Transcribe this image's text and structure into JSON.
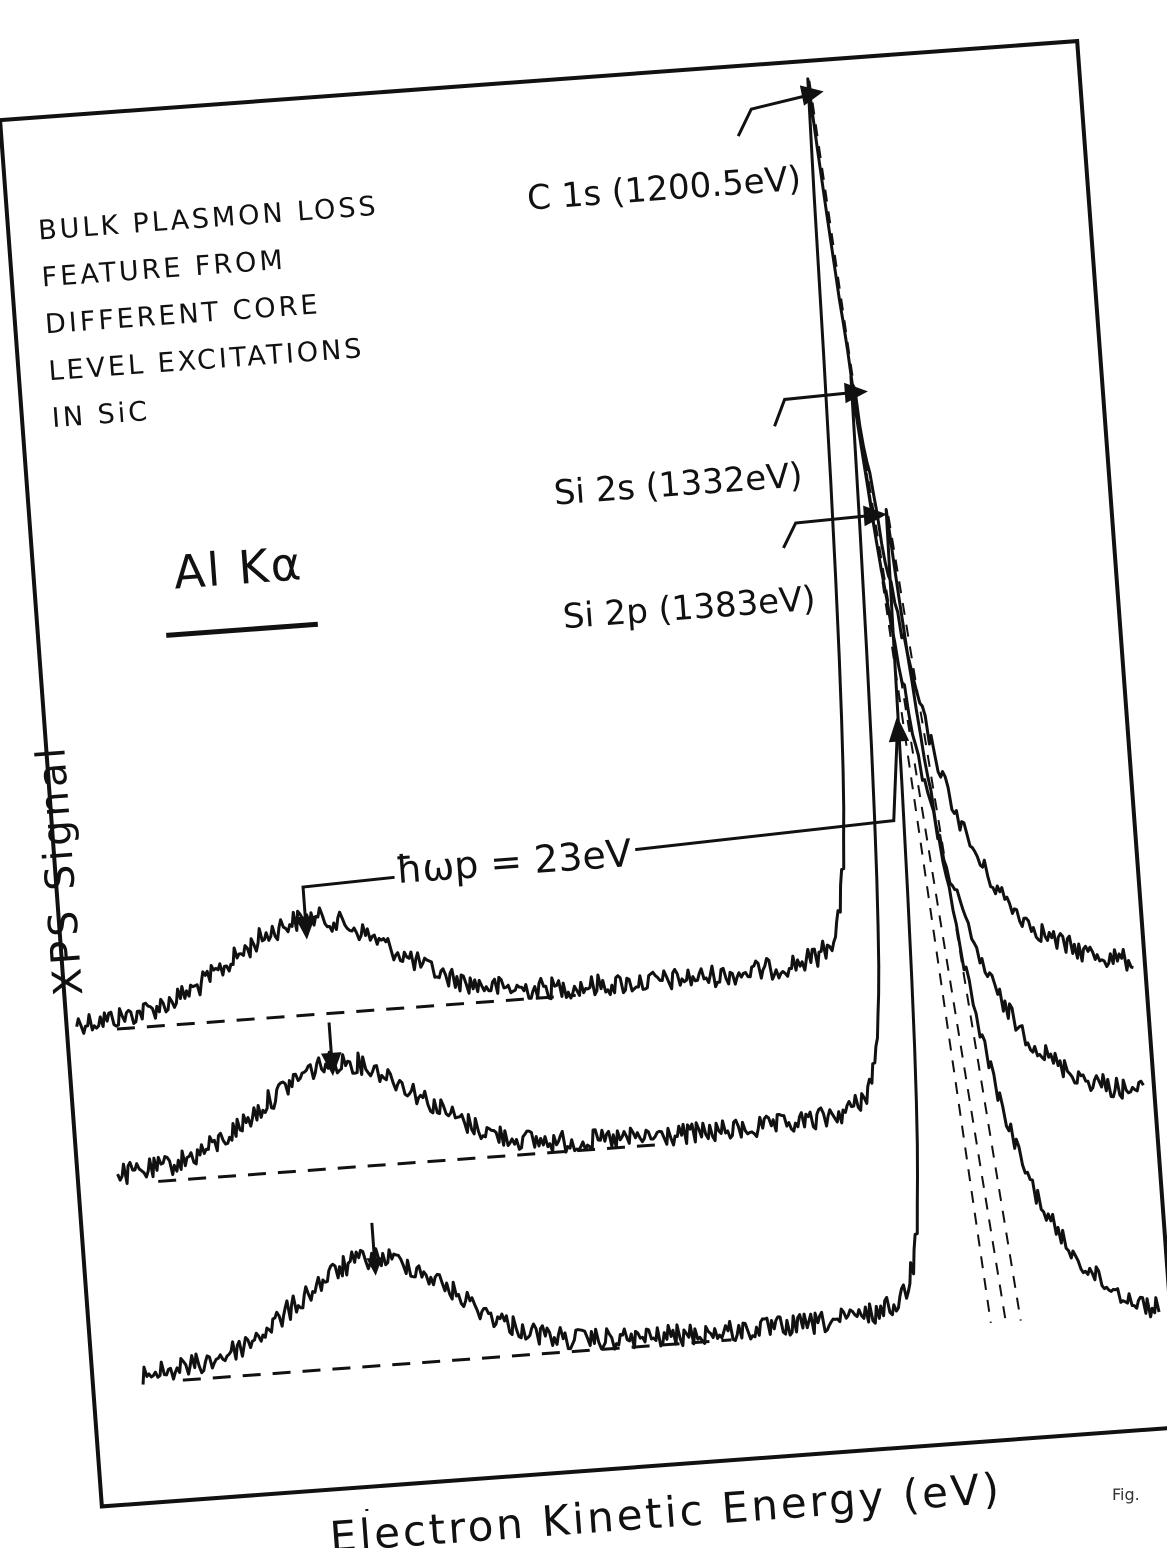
{
  "chart_data": {
    "type": "line",
    "title_lines": [
      "BULK PLASMON LOSS",
      "FEATURE FROM",
      "DIFFERENT CORE",
      "LEVEL EXCITATIONS",
      "IN SiC"
    ],
    "source_label": "Al Kα",
    "xlabel": "Electron Kinetic Energy (eV)",
    "ylabel": "XPS Signal",
    "plasmon_label": "ħωp = 23eV",
    "plasmon_energy_eV": 23,
    "fig_mark": "Fig.",
    "series": [
      {
        "name": "C 1s (1200.5eV)",
        "peak_eV": 1200.5
      },
      {
        "name": "Si 2s (1332eV)",
        "peak_eV": 1332
      },
      {
        "name": "Si 2p (1383eV)",
        "peak_eV": 1383
      }
    ]
  }
}
